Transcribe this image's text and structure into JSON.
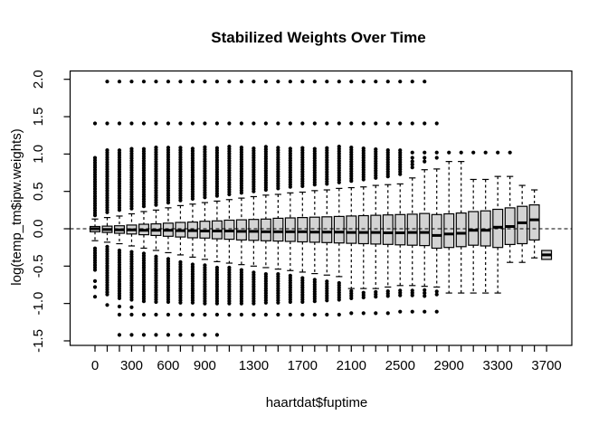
{
  "colors": {
    "background": "#ffffff",
    "box_fill": "#d3d3d3",
    "stroke": "#000000"
  },
  "chart_data": {
    "type": "boxplot",
    "title": "Stabilized Weights Over Time",
    "xlabel": "haartdat$fuptime",
    "ylabel": "log(temp_tm$ipw.weights)",
    "x_tick_labels": [
      0,
      300,
      600,
      900,
      1300,
      1700,
      2100,
      2500,
      2900,
      3300,
      3700
    ],
    "y_tick_labels": [
      "2.0",
      "1.5",
      "1.0",
      "0.5",
      "0.0",
      "-0.5",
      "-1.0",
      "-1.5"
    ],
    "y_ticks": [
      2.0,
      1.5,
      1.0,
      0.5,
      0.0,
      -0.5,
      -1.0,
      -1.5
    ],
    "ylim": [
      -1.56,
      2.11
    ],
    "xlim": [
      -200,
      3900
    ],
    "reference_line_y": 0,
    "grid": false,
    "boxes": [
      {
        "x": 0,
        "whiskers": [
          -0.16,
          0.13
        ],
        "box": [
          -0.04,
          0.0,
          0.03
        ],
        "dense_high": [
          0.18,
          0.95
        ],
        "dots_high": [
          1.41
        ],
        "dense_low": [
          -0.55,
          -0.25
        ],
        "dots_low": [
          -0.7,
          -0.78,
          -0.91
        ]
      },
      {
        "x": 100,
        "whiskers": [
          -0.18,
          0.15
        ],
        "box": [
          -0.05,
          -0.01,
          0.035
        ],
        "dense_high": [
          0.22,
          1.08
        ],
        "dots_high": [
          1.41,
          1.97
        ],
        "dense_low": [
          -0.88,
          -0.24
        ],
        "dots_low": [
          -1.02
        ]
      },
      {
        "x": 200,
        "whiskers": [
          -0.2,
          0.17
        ],
        "box": [
          -0.06,
          -0.015,
          0.04
        ],
        "dense_high": [
          0.25,
          1.08
        ],
        "dots_high": [
          1.41,
          1.97
        ],
        "dense_low": [
          -0.93,
          -0.27
        ],
        "dots_low": [
          -1.04,
          -1.15,
          -1.42
        ]
      },
      {
        "x": 300,
        "whiskers": [
          -0.23,
          0.2
        ],
        "box": [
          -0.07,
          -0.015,
          0.05
        ],
        "dense_high": [
          0.27,
          1.09
        ],
        "dots_high": [
          1.41,
          1.97
        ],
        "dense_low": [
          -0.95,
          -0.3
        ],
        "dots_low": [
          -1.05,
          -1.15,
          -1.42
        ]
      },
      {
        "x": 400,
        "whiskers": [
          -0.26,
          0.23
        ],
        "box": [
          -0.08,
          -0.02,
          0.06
        ],
        "dense_high": [
          0.3,
          1.09
        ],
        "dots_high": [
          1.41,
          1.97
        ],
        "dense_low": [
          -0.97,
          -0.33
        ],
        "dots_low": [
          -1.15,
          -1.42
        ]
      },
      {
        "x": 500,
        "whiskers": [
          -0.29,
          0.25
        ],
        "box": [
          -0.09,
          -0.02,
          0.065
        ],
        "dense_high": [
          0.32,
          1.09
        ],
        "dots_high": [
          1.41,
          1.97
        ],
        "dense_low": [
          -0.98,
          -0.36
        ],
        "dots_low": [
          -1.15,
          -1.42
        ]
      },
      {
        "x": 600,
        "whiskers": [
          -0.32,
          0.28
        ],
        "box": [
          -0.1,
          -0.02,
          0.075
        ],
        "dense_high": [
          0.35,
          1.1
        ],
        "dots_high": [
          1.41,
          1.97
        ],
        "dense_low": [
          -0.98,
          -0.39
        ],
        "dots_low": [
          -1.15,
          -1.42
        ]
      },
      {
        "x": 700,
        "whiskers": [
          -0.35,
          0.31
        ],
        "box": [
          -0.11,
          -0.025,
          0.085
        ],
        "dense_high": [
          0.38,
          1.1
        ],
        "dots_high": [
          1.41,
          1.97
        ],
        "dense_low": [
          -0.99,
          -0.42
        ],
        "dots_low": [
          -1.15,
          -1.42
        ]
      },
      {
        "x": 800,
        "whiskers": [
          -0.38,
          0.33
        ],
        "box": [
          -0.12,
          -0.025,
          0.09
        ],
        "dense_high": [
          0.4,
          1.1
        ],
        "dots_high": [
          1.41,
          1.97
        ],
        "dense_low": [
          -0.99,
          -0.45
        ],
        "dots_low": [
          -1.15,
          -1.42
        ]
      },
      {
        "x": 900,
        "whiskers": [
          -0.41,
          0.35
        ],
        "box": [
          -0.125,
          -0.03,
          0.1
        ],
        "dense_high": [
          0.42,
          1.1
        ],
        "dots_high": [
          1.41,
          1.97
        ],
        "dense_low": [
          -1.0,
          -0.48
        ],
        "dots_low": [
          -1.15,
          -1.42
        ]
      },
      {
        "x": 1000,
        "whiskers": [
          -0.44,
          0.37
        ],
        "box": [
          -0.135,
          -0.03,
          0.105
        ],
        "dense_high": [
          0.44,
          1.1
        ],
        "dots_high": [
          1.41,
          1.97
        ],
        "dense_low": [
          -1.0,
          -0.5
        ],
        "dots_low": [
          -1.15,
          -1.42
        ]
      },
      {
        "x": 1100,
        "whiskers": [
          -0.46,
          0.39
        ],
        "box": [
          -0.14,
          -0.03,
          0.115
        ],
        "dense_high": [
          0.46,
          1.1
        ],
        "dots_high": [
          1.41,
          1.97
        ],
        "dense_low": [
          -1.0,
          -0.52
        ],
        "dots_low": [
          -1.15
        ]
      },
      {
        "x": 1200,
        "whiskers": [
          -0.48,
          0.41
        ],
        "box": [
          -0.15,
          -0.035,
          0.12
        ],
        "dense_high": [
          0.48,
          1.1
        ],
        "dots_high": [
          1.41,
          1.97
        ],
        "dense_low": [
          -1.0,
          -0.54
        ],
        "dots_low": [
          -1.15
        ]
      },
      {
        "x": 1300,
        "whiskers": [
          -0.5,
          0.43
        ],
        "box": [
          -0.155,
          -0.035,
          0.125
        ],
        "dense_high": [
          0.5,
          1.1
        ],
        "dots_high": [
          1.41,
          1.97
        ],
        "dense_low": [
          -1.0,
          -0.56
        ],
        "dots_low": [
          -1.15
        ]
      },
      {
        "x": 1400,
        "whiskers": [
          -0.52,
          0.45
        ],
        "box": [
          -0.16,
          -0.04,
          0.13
        ],
        "dense_high": [
          0.52,
          1.1
        ],
        "dots_high": [
          1.41,
          1.97
        ],
        "dense_low": [
          -0.99,
          -0.58
        ],
        "dots_low": [
          -1.15
        ]
      },
      {
        "x": 1500,
        "whiskers": [
          -0.54,
          0.46
        ],
        "box": [
          -0.165,
          -0.04,
          0.14
        ],
        "dense_high": [
          0.54,
          1.1
        ],
        "dots_high": [
          1.41,
          1.97
        ],
        "dense_low": [
          -0.99,
          -0.6
        ],
        "dots_low": [
          -1.15
        ]
      },
      {
        "x": 1600,
        "whiskers": [
          -0.56,
          0.48
        ],
        "box": [
          -0.17,
          -0.04,
          0.145
        ],
        "dense_high": [
          0.56,
          1.1
        ],
        "dots_high": [
          1.41,
          1.97
        ],
        "dense_low": [
          -0.98,
          -0.62
        ],
        "dots_low": [
          -1.15
        ]
      },
      {
        "x": 1700,
        "whiskers": [
          -0.58,
          0.49
        ],
        "box": [
          -0.175,
          -0.04,
          0.15
        ],
        "dense_high": [
          0.57,
          1.1
        ],
        "dots_high": [
          1.41,
          1.97
        ],
        "dense_low": [
          -0.98,
          -0.64
        ],
        "dots_low": [
          -1.15
        ]
      },
      {
        "x": 1800,
        "whiskers": [
          -0.6,
          0.51
        ],
        "box": [
          -0.18,
          -0.045,
          0.155
        ],
        "dense_high": [
          0.59,
          1.1
        ],
        "dots_high": [
          1.41,
          1.97
        ],
        "dense_low": [
          -0.97,
          -0.66
        ],
        "dots_low": [
          -1.15
        ]
      },
      {
        "x": 1900,
        "whiskers": [
          -0.62,
          0.52
        ],
        "box": [
          -0.185,
          -0.045,
          0.16
        ],
        "dense_high": [
          0.6,
          1.1
        ],
        "dots_high": [
          1.41,
          1.97
        ],
        "dense_low": [
          -0.96,
          -0.68
        ],
        "dots_low": [
          -1.15
        ]
      },
      {
        "x": 2000,
        "whiskers": [
          -0.64,
          0.54
        ],
        "box": [
          -0.19,
          -0.045,
          0.165
        ],
        "dense_high": [
          0.62,
          1.1
        ],
        "dots_high": [
          1.41,
          1.97
        ],
        "dense_low": [
          -0.95,
          -0.7
        ],
        "dots_low": [
          -1.15
        ]
      },
      {
        "x": 2100,
        "whiskers": [
          -0.8,
          0.55
        ],
        "box": [
          -0.195,
          -0.05,
          0.17
        ],
        "dense_high": [
          0.64,
          1.09
        ],
        "dots_high": [
          1.41,
          1.97
        ],
        "dense_low": [
          -0.93,
          -0.82
        ],
        "dots_low": [
          -1.13
        ]
      },
      {
        "x": 2200,
        "whiskers": [
          -0.8,
          0.56
        ],
        "box": [
          -0.2,
          -0.05,
          0.175
        ],
        "dense_high": [
          0.66,
          1.09
        ],
        "dots_high": [
          1.41,
          1.97
        ],
        "dense_low": [
          -0.92,
          -0.83
        ],
        "dots_low": [
          -1.13
        ]
      },
      {
        "x": 2300,
        "whiskers": [
          -0.8,
          0.58
        ],
        "box": [
          -0.205,
          -0.05,
          0.18
        ],
        "dense_high": [
          0.68,
          1.08
        ],
        "dots_high": [
          1.41,
          1.97
        ],
        "dense_low": [
          -0.91,
          -0.84
        ],
        "dots_low": [
          -1.13
        ]
      },
      {
        "x": 2400,
        "whiskers": [
          -0.78,
          0.59
        ],
        "box": [
          -0.21,
          -0.055,
          0.185
        ],
        "dense_high": [
          0.7,
          1.07
        ],
        "dots_high": [
          1.41,
          1.97
        ],
        "dense_low": [
          -0.9,
          -0.82
        ],
        "dots_low": [
          -1.13
        ]
      },
      {
        "x": 2500,
        "whiskers": [
          -0.76,
          0.6
        ],
        "box": [
          -0.215,
          -0.055,
          0.19
        ],
        "dense_high": [
          0.73,
          1.06
        ],
        "dots_high": [
          1.41,
          1.97
        ],
        "dense_low": [
          -0.89,
          -0.8
        ],
        "dots_low": [
          -1.11
        ]
      },
      {
        "x": 2600,
        "whiskers": [
          -0.76,
          0.68
        ],
        "box": [
          -0.22,
          -0.05,
          0.195
        ],
        "dense_high": null,
        "dots_high": [
          0.82,
          0.86,
          0.9,
          0.95,
          1.02,
          1.41,
          1.97
        ],
        "dense_low": [
          -0.89,
          -0.8
        ],
        "dots_low": [
          -1.11
        ]
      },
      {
        "x": 2700,
        "whiskers": [
          -0.77,
          0.79
        ],
        "box": [
          -0.225,
          -0.05,
          0.205
        ],
        "dense_high": null,
        "dots_high": [
          0.9,
          0.95,
          1.02,
          1.41,
          1.97
        ],
        "dense_low": null,
        "dots_low": [
          -0.82,
          -0.86,
          -0.9,
          -1.11
        ]
      },
      {
        "x": 2800,
        "whiskers": [
          -0.78,
          0.8
        ],
        "box": [
          -0.26,
          -0.09,
          0.19
        ],
        "dense_high": null,
        "dots_high": [
          0.95,
          1.02,
          1.41
        ],
        "dense_low": null,
        "dots_low": [
          -0.84,
          -0.88,
          -1.11
        ]
      },
      {
        "x": 2900,
        "whiskers": [
          -0.86,
          0.9
        ],
        "box": [
          -0.25,
          -0.07,
          0.2
        ],
        "dense_high": null,
        "dots_high": [
          1.02
        ],
        "dense_low": null,
        "dots_low": []
      },
      {
        "x": 3000,
        "whiskers": [
          -0.86,
          0.9
        ],
        "box": [
          -0.24,
          -0.06,
          0.21
        ],
        "dense_high": null,
        "dots_high": [
          1.02
        ],
        "dense_low": null,
        "dots_low": []
      },
      {
        "x": 3100,
        "whiskers": [
          -0.86,
          0.66
        ],
        "box": [
          -0.22,
          -0.02,
          0.23
        ],
        "dense_high": null,
        "dots_high": [
          1.02
        ],
        "dense_low": null,
        "dots_low": []
      },
      {
        "x": 3200,
        "whiskers": [
          -0.86,
          0.66
        ],
        "box": [
          -0.23,
          -0.02,
          0.24
        ],
        "dense_high": null,
        "dots_high": [
          1.02
        ],
        "dense_low": null,
        "dots_low": []
      },
      {
        "x": 3300,
        "whiskers": [
          -0.86,
          0.7
        ],
        "box": [
          -0.25,
          0.02,
          0.26
        ],
        "dense_high": null,
        "dots_high": [
          1.02
        ],
        "dense_low": null,
        "dots_low": []
      },
      {
        "x": 3400,
        "whiskers": [
          -0.45,
          0.7
        ],
        "box": [
          -0.21,
          0.03,
          0.28
        ],
        "dense_high": null,
        "dots_high": [
          1.02
        ],
        "dense_low": null,
        "dots_low": []
      },
      {
        "x": 3500,
        "whiskers": [
          -0.45,
          0.58
        ],
        "box": [
          -0.2,
          0.08,
          0.3
        ],
        "dense_high": null,
        "dots_high": [],
        "dense_low": null,
        "dots_low": []
      },
      {
        "x": 3600,
        "whiskers": [
          -0.39,
          0.52
        ],
        "box": [
          -0.15,
          0.12,
          0.32
        ],
        "dense_high": null,
        "dots_high": [],
        "dense_low": null,
        "dots_low": []
      },
      {
        "x": 3700,
        "whiskers": null,
        "box": [
          -0.41,
          -0.35,
          -0.29
        ],
        "dense_high": null,
        "dots_high": [],
        "dense_low": null,
        "dots_low": []
      }
    ]
  }
}
